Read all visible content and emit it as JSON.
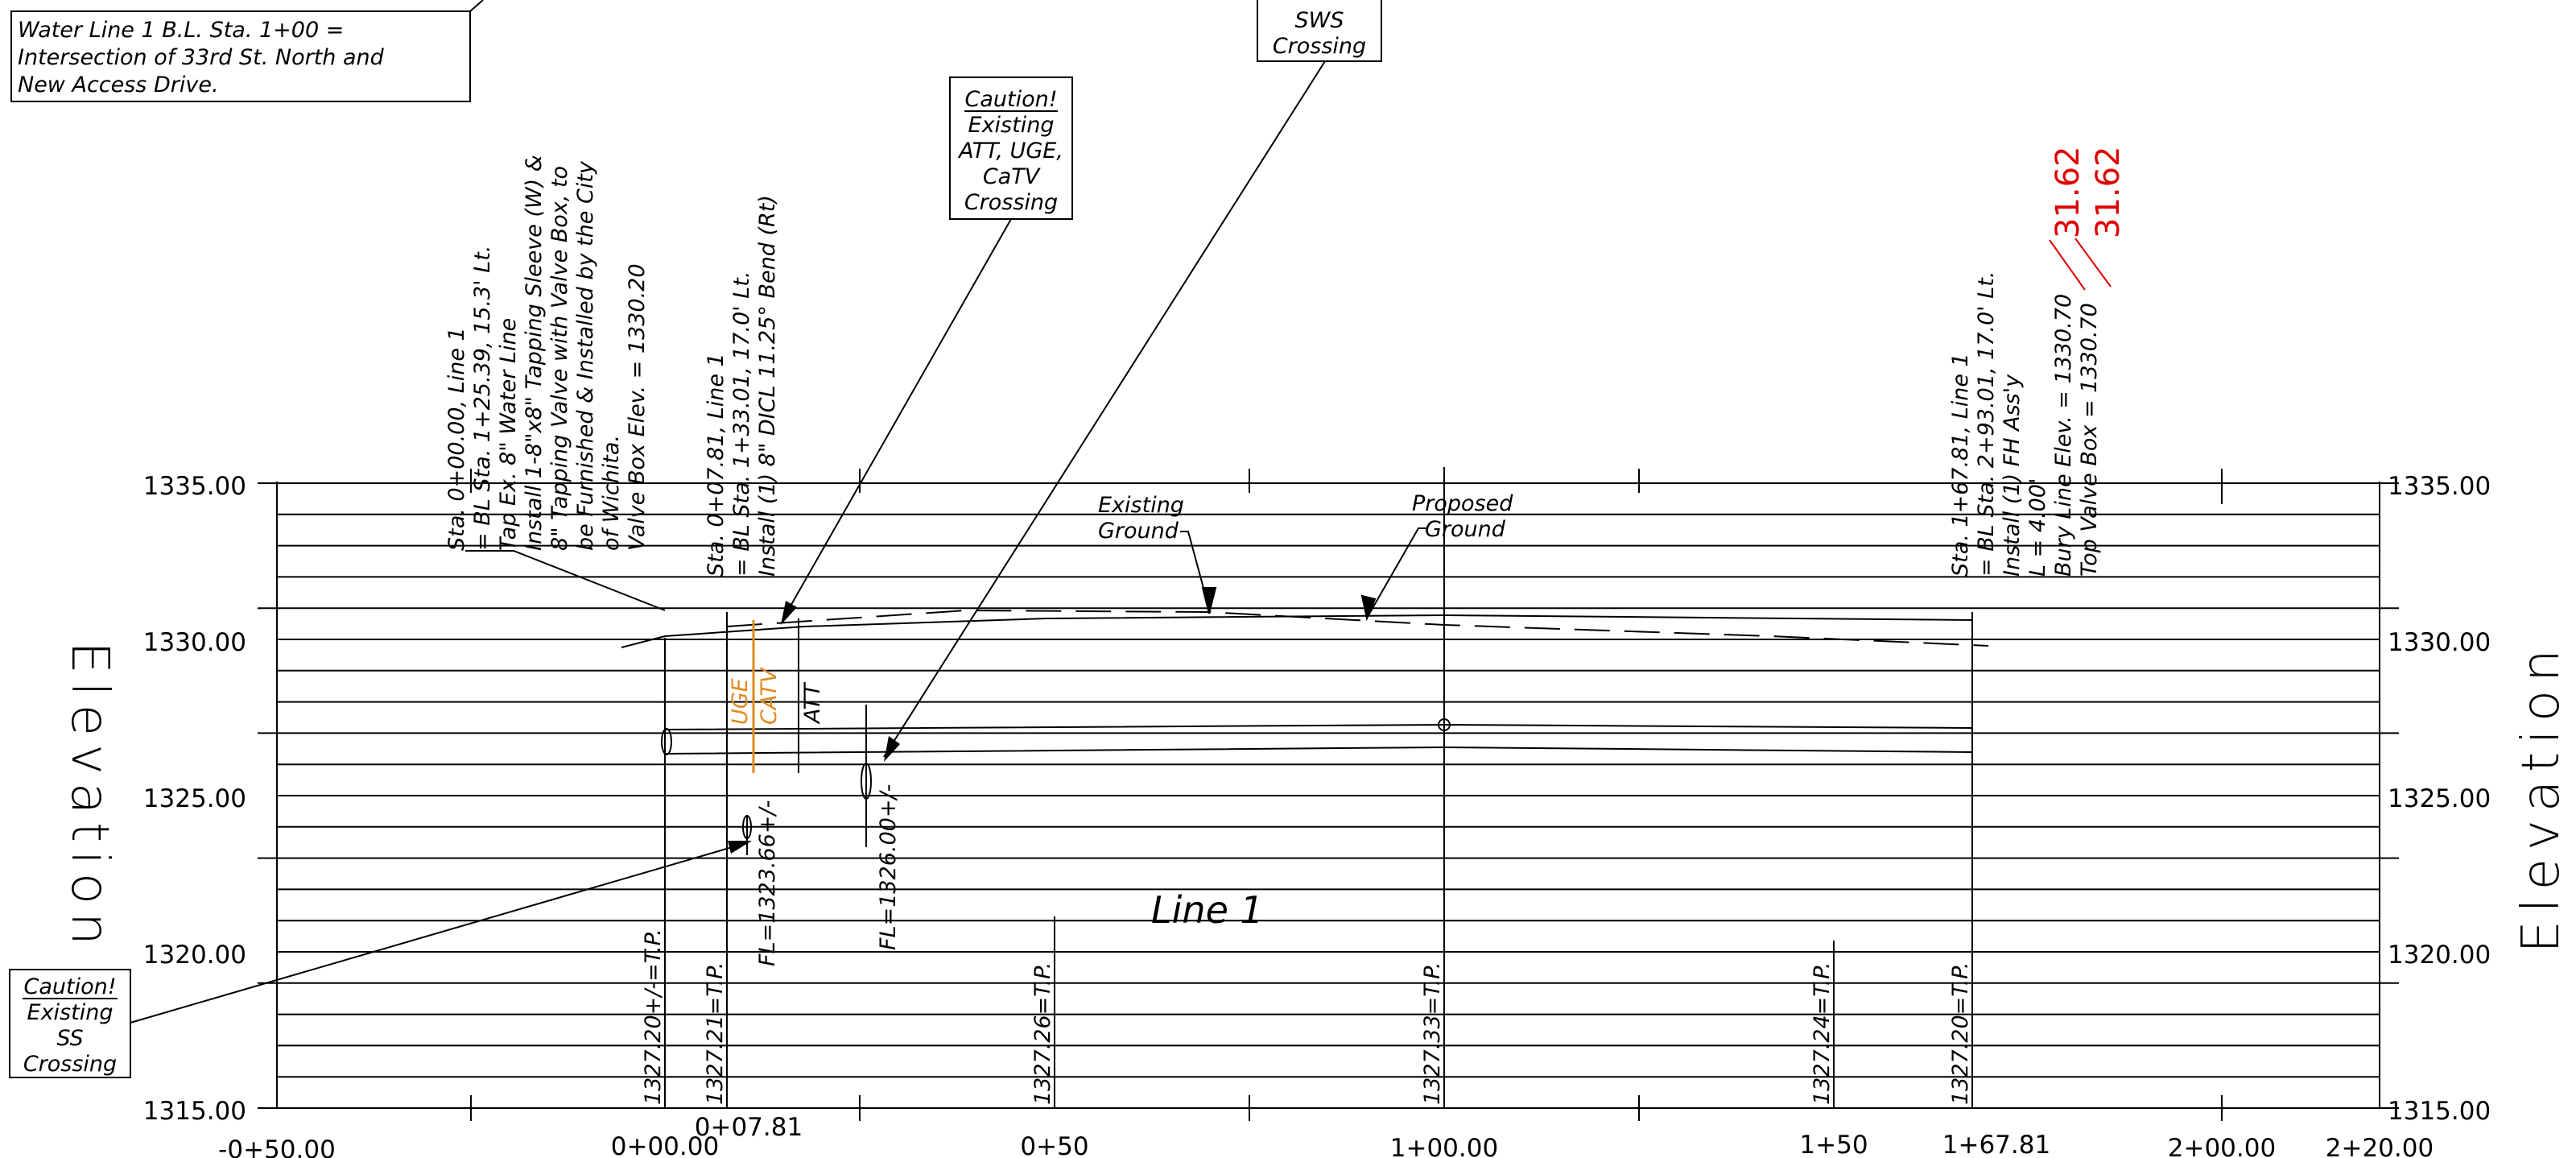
{
  "y_axis": {
    "left_ticks": [
      "1335.00",
      "1330.00",
      "1325.00",
      "1320.00",
      "1315.00"
    ],
    "right_ticks": [
      "1335.00",
      "1330.00",
      "1325.00",
      "1320.00",
      "1315.00"
    ],
    "title_left": "Elevation",
    "title_right": "Elevation"
  },
  "x_axis": {
    "ticks": [
      "-0+50.00",
      "0+00.00",
      "0+07.81",
      "0+50",
      "1+00.00",
      "1+50",
      "1+67.81",
      "2+00.00",
      "2+20.00"
    ]
  },
  "notes": {
    "baseline_note": [
      "Water Line 1 B.L. Sta. 1+00 =",
      "Intersection of 33rd St. North and",
      "New Access Drive."
    ],
    "sws_crossing": [
      "SWS",
      "Crossing"
    ],
    "caution_att": [
      "Caution!",
      "Existing",
      "ATT, UGE,",
      "CaTV",
      "Crossing"
    ],
    "caution_ss": [
      "Caution!",
      "Existing",
      "SS",
      "Crossing"
    ],
    "callout_sta0": [
      "Sta. 0+00.00, Line 1",
      "= BL Sta. 1+25.39, 15.3' Lt.",
      "Tap Ex. 8\" Water Line",
      "Install 1-8\"x8\" Tapping Sleeve (W) &",
      "8\" Tapping Valve with Valve Box, to",
      "be Furnished & Installed by the City",
      "of Wichita.",
      "Valve Box Elev. = 1330.20"
    ],
    "callout_sta0781": [
      "Sta. 0+07.81, Line 1",
      "= BL Sta. 1+33.01, 17.0' Lt.",
      "Install (1) 8\" DICL 11.25° Bend (Rt)"
    ],
    "callout_sta16781": [
      "Sta. 1+67.81, Line 1",
      "= BL Sta. 2+93.01, 17.0' Lt.",
      "Install (1) FH Ass'y",
      "L = 4.00'",
      "Bury Line Elev. = 1330.70",
      "Top Valve Box = 1330.70"
    ],
    "revised_values": [
      "31.62",
      "31.62"
    ]
  },
  "labels": {
    "existing_ground": [
      "Existing",
      "Ground"
    ],
    "proposed_ground": [
      "Proposed",
      "Ground"
    ],
    "line_name": "Line 1",
    "att": "ATT",
    "uge": "UGE",
    "catv": "CATV",
    "fl_ss": "FL=1323.66+/-",
    "fl_sws": "FL=1326.00+/-"
  },
  "stations": [
    {
      "label": "1327.20+/-=T.P."
    },
    {
      "label": "1327.21=T.P."
    },
    {
      "label": "1327.26=T.P."
    },
    {
      "label": "1327.33=T.P."
    },
    {
      "label": "1327.24=T.P."
    },
    {
      "label": "1327.20=T.P."
    }
  ],
  "colors": {
    "ink": "#000000",
    "utility": "#e08a1e",
    "revision": "#e00000"
  }
}
